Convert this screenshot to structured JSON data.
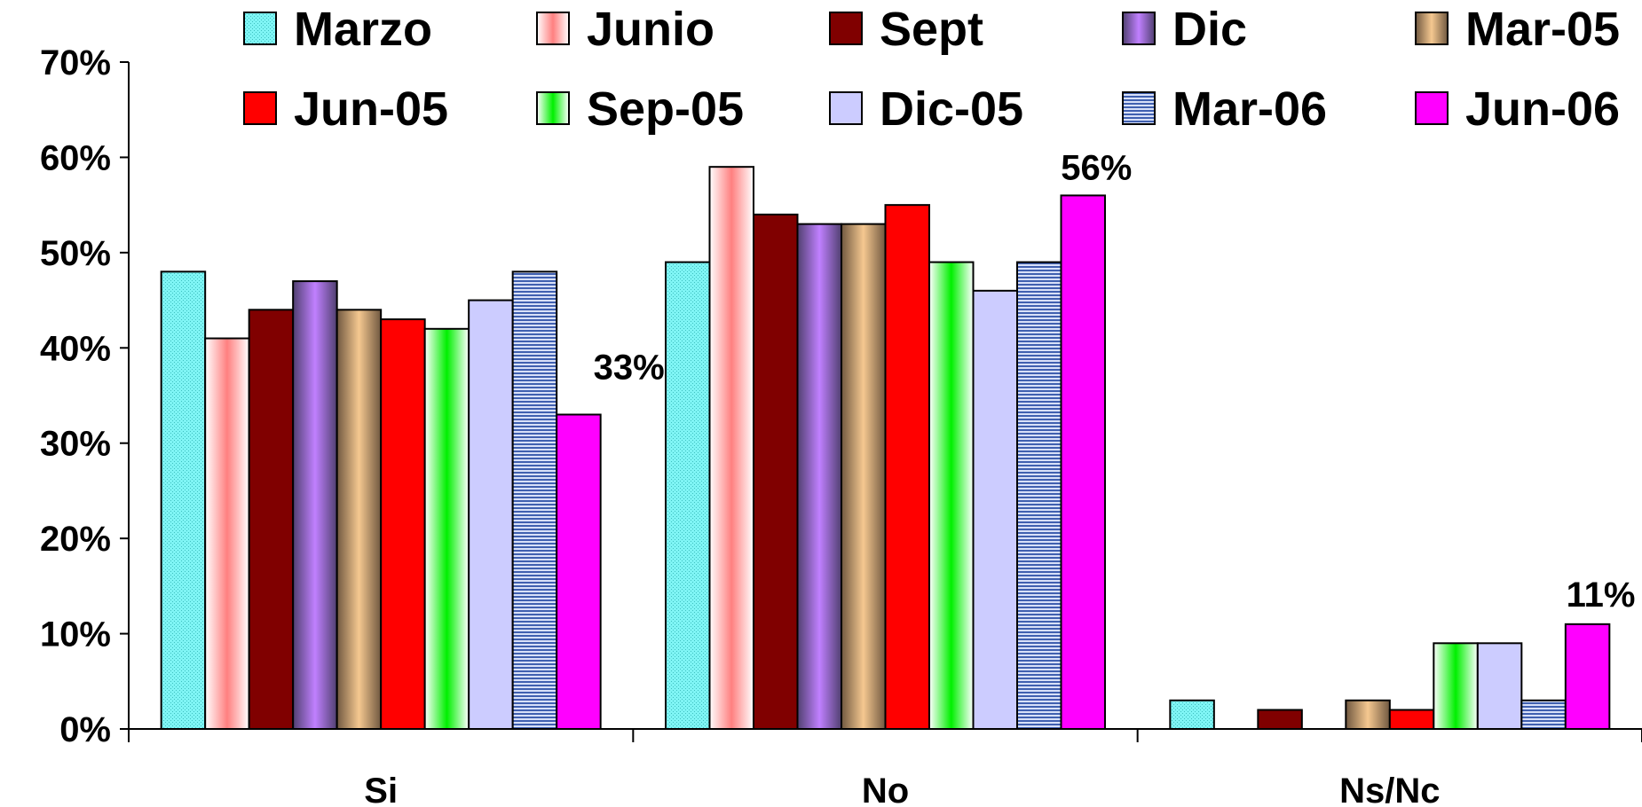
{
  "chart_data": {
    "type": "bar",
    "title": "",
    "xlabel": "",
    "ylabel": "",
    "ylim": [
      0,
      70
    ],
    "y_ticks": [
      "0%",
      "10%",
      "20%",
      "30%",
      "40%",
      "50%",
      "60%",
      "70%"
    ],
    "categories": [
      "Si",
      "No",
      "Ns/Nc"
    ],
    "legend_position": "top",
    "grid": false,
    "series": [
      {
        "name": "Marzo",
        "values": [
          48,
          49,
          3
        ],
        "color": "#7FF5F5",
        "pattern": "dots"
      },
      {
        "name": "Junio",
        "values": [
          41,
          59,
          0
        ],
        "color": "#FF8080",
        "pattern": "vgrad-white"
      },
      {
        "name": "Sept",
        "values": [
          44,
          54,
          2
        ],
        "color": "#800000",
        "pattern": "solid"
      },
      {
        "name": "Dic",
        "values": [
          47,
          53,
          0
        ],
        "color": "#C080FF",
        "pattern": "vgrad-dark",
        "dark": "#504070"
      },
      {
        "name": "Mar-05",
        "values": [
          44,
          53,
          3
        ],
        "color": "#F5C890",
        "pattern": "vgrad-dark",
        "dark": "#705840"
      },
      {
        "name": "Jun-05",
        "values": [
          43,
          55,
          2
        ],
        "color": "#FF0000",
        "pattern": "solid"
      },
      {
        "name": "Sep-05",
        "values": [
          42,
          49,
          9
        ],
        "color": "#00F000",
        "pattern": "vgrad-white"
      },
      {
        "name": "Dic-05",
        "values": [
          45,
          46,
          9
        ],
        "color": "#CCCCFF",
        "pattern": "solid"
      },
      {
        "name": "Mar-06",
        "values": [
          48,
          49,
          3
        ],
        "color": "#A0B0E0",
        "pattern": "hlines"
      },
      {
        "name": "Jun-06",
        "values": [
          33,
          56,
          11
        ],
        "color": "#FF00FF",
        "pattern": "solid"
      }
    ],
    "annotations": [
      {
        "text": "33%",
        "series": 9,
        "category": 0
      },
      {
        "text": "56%",
        "series": 9,
        "category": 1
      },
      {
        "text": "11%",
        "series": 9,
        "category": 2
      }
    ]
  }
}
